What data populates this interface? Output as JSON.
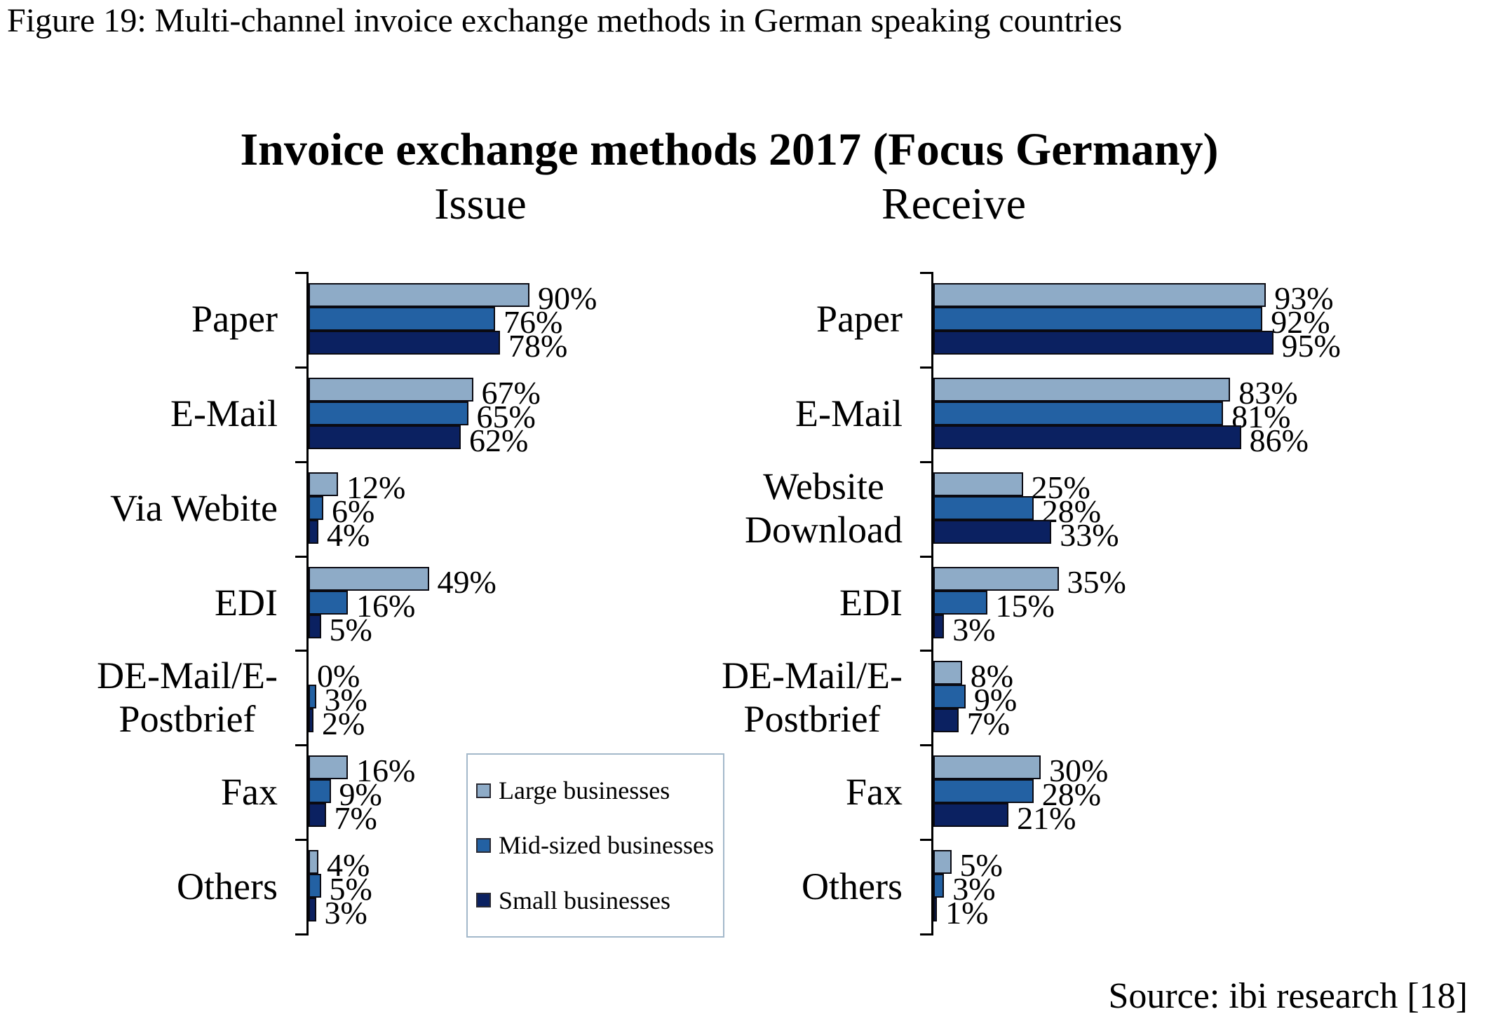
{
  "figure_caption": "Figure 19: Multi-channel invoice exchange methods in German speaking countries",
  "chart": {
    "title": "Invoice exchange methods 2017 (Focus Germany)"
  },
  "legend": {
    "items": [
      {
        "label": "Large businesses",
        "color": "#8eabc7"
      },
      {
        "label": "Mid-sized businesses",
        "color": "#2361a3"
      },
      {
        "label": "Small businesses",
        "color": "#0b2161"
      }
    ]
  },
  "source_note": "Source: ibi research [18]",
  "chart_data": {
    "type": "bar",
    "orientation": "horizontal",
    "value_unit": "%",
    "xlim": [
      0,
      100
    ],
    "grid": false,
    "legend_position": "inside-bottom-of-left-panel",
    "series_order": [
      "Large businesses",
      "Mid-sized businesses",
      "Small businesses"
    ],
    "panels": [
      {
        "title": "Issue",
        "categories": [
          "Paper",
          "E-Mail",
          "Via Webite",
          "EDI",
          "DE-Mail/E-\nPostbrief",
          "Fax",
          "Others"
        ],
        "series": [
          {
            "name": "Large businesses",
            "values": [
              90,
              67,
              12,
              49,
              0,
              16,
              4
            ]
          },
          {
            "name": "Mid-sized businesses",
            "values": [
              76,
              65,
              6,
              16,
              3,
              9,
              5
            ]
          },
          {
            "name": "Small businesses",
            "values": [
              78,
              62,
              4,
              5,
              2,
              7,
              3
            ]
          }
        ]
      },
      {
        "title": "Receive",
        "categories": [
          "Paper",
          "E-Mail",
          "Website\nDownload",
          "EDI",
          "DE-Mail/E-\nPostbrief",
          "Fax",
          "Others"
        ],
        "series": [
          {
            "name": "Large businesses",
            "values": [
              93,
              83,
              25,
              35,
              8,
              30,
              5
            ]
          },
          {
            "name": "Mid-sized businesses",
            "values": [
              92,
              81,
              28,
              15,
              9,
              28,
              3
            ]
          },
          {
            "name": "Small businesses",
            "values": [
              95,
              86,
              33,
              3,
              7,
              21,
              1
            ]
          }
        ]
      }
    ]
  }
}
